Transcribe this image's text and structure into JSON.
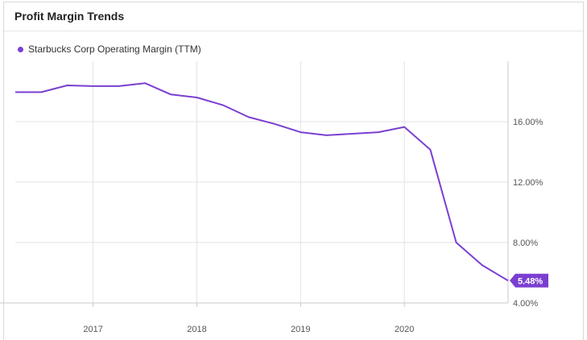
{
  "title": "Profit Margin Trends",
  "legend": {
    "label": "Starbucks Corp Operating Margin (TTM)"
  },
  "colors": {
    "series": "#7b3fd0",
    "grid": "#e3e3e3",
    "axis": "#c9c9c9"
  },
  "chart_data": {
    "type": "line",
    "title": "Profit Margin Trends",
    "xlabel": "",
    "ylabel": "",
    "ylim": [
      4,
      20
    ],
    "xlim": [
      2016.25,
      2021.0
    ],
    "y_ticks": [
      4,
      8,
      12,
      16
    ],
    "y_tick_labels": [
      "4.00%",
      "8.00%",
      "12.00%",
      "16.00%"
    ],
    "x_ticks": [
      2017,
      2018,
      2019,
      2020
    ],
    "x_tick_labels": [
      "2017",
      "2018",
      "2019",
      "2020"
    ],
    "grid": true,
    "legend_position": "top-left",
    "series": [
      {
        "name": "Starbucks Corp Operating Margin (TTM)",
        "x": [
          2016.25,
          2016.5,
          2016.75,
          2017.0,
          2017.25,
          2017.5,
          2017.75,
          2018.0,
          2018.25,
          2018.5,
          2018.75,
          2019.0,
          2019.25,
          2019.5,
          2019.75,
          2020.0,
          2020.25,
          2020.5,
          2020.75,
          2021.0
        ],
        "y": [
          17.95,
          17.95,
          18.4,
          18.35,
          18.35,
          18.55,
          17.8,
          17.6,
          17.1,
          16.3,
          15.85,
          15.3,
          15.1,
          15.2,
          15.3,
          15.65,
          14.15,
          8.0,
          6.5,
          5.48
        ]
      }
    ],
    "end_label": "5.48%"
  }
}
